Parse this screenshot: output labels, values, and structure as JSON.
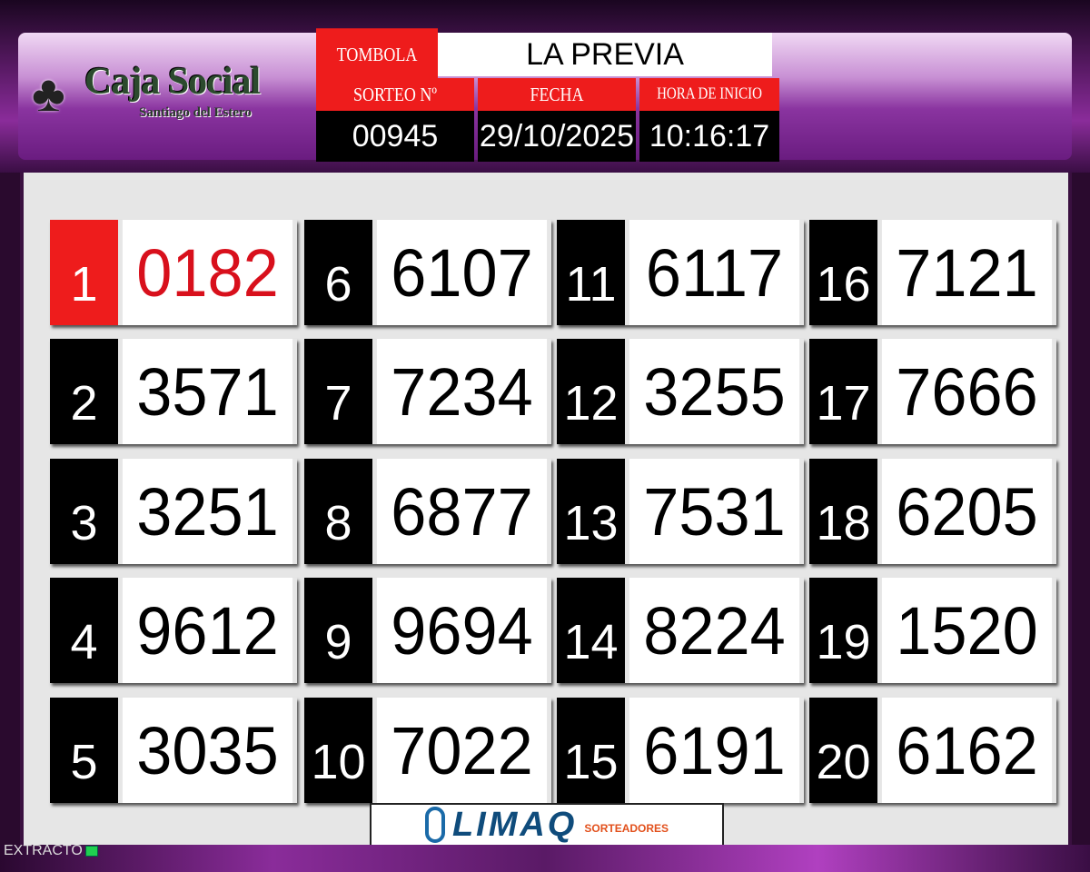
{
  "header": {
    "logo": {
      "name": "Caja Social",
      "subtitle": "Santiago del Estero"
    },
    "game_label": "TOMBOLA",
    "game_name": "LA PREVIA",
    "fields": [
      {
        "label": "SORTEO Nº",
        "value": "00945"
      },
      {
        "label": "FECHA",
        "value": "29/10/2025"
      },
      {
        "label": "HORA DE INICIO",
        "value": "10:16:17"
      }
    ]
  },
  "results": [
    {
      "pos": "1",
      "number": "0182"
    },
    {
      "pos": "2",
      "number": "3571"
    },
    {
      "pos": "3",
      "number": "3251"
    },
    {
      "pos": "4",
      "number": "9612"
    },
    {
      "pos": "5",
      "number": "3035"
    },
    {
      "pos": "6",
      "number": "6107"
    },
    {
      "pos": "7",
      "number": "7234"
    },
    {
      "pos": "8",
      "number": "6877"
    },
    {
      "pos": "9",
      "number": "9694"
    },
    {
      "pos": "10",
      "number": "7022"
    },
    {
      "pos": "11",
      "number": "6117"
    },
    {
      "pos": "12",
      "number": "3255"
    },
    {
      "pos": "13",
      "number": "7531"
    },
    {
      "pos": "14",
      "number": "8224"
    },
    {
      "pos": "15",
      "number": "6191"
    },
    {
      "pos": "16",
      "number": "7121"
    },
    {
      "pos": "17",
      "number": "7666"
    },
    {
      "pos": "18",
      "number": "6205"
    },
    {
      "pos": "19",
      "number": "1520"
    },
    {
      "pos": "20",
      "number": "6162"
    }
  ],
  "footer": {
    "sponsor": "LIMAQ",
    "sponsor_tag": "SORTEADORES",
    "status": "EXTRACTO"
  },
  "colors": {
    "accent_red": "#ee1c1c",
    "first_number": "#d8101c",
    "brand_purple": "#8a2c9a"
  }
}
